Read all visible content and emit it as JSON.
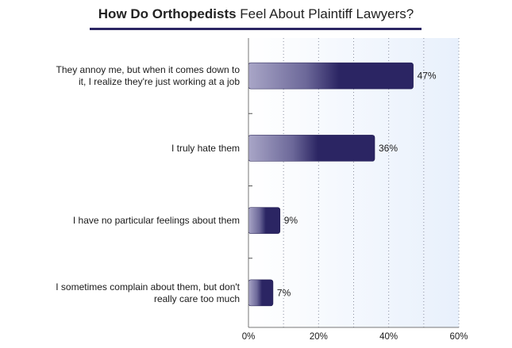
{
  "chart_data": {
    "type": "bar",
    "orientation": "horizontal",
    "title_bold": "How Do Orthopedists",
    "title_rest": " Feel About Plaintiff Lawyers?",
    "categories": [
      [
        "They annoy me, but when it comes down to",
        "it, I realize they're just working at a job"
      ],
      [
        "I truly hate them"
      ],
      [
        "I have no particular feelings about them"
      ],
      [
        "I sometimes complain about them, but don't",
        "really care too much"
      ]
    ],
    "values": [
      47,
      36,
      9,
      7
    ],
    "value_labels": [
      "47%",
      "36%",
      "9%",
      "7%"
    ],
    "xlim": [
      0,
      60
    ],
    "x_ticks": [
      0,
      20,
      40,
      60
    ],
    "x_tick_labels": [
      "0%",
      "20%",
      "40%",
      "60%"
    ],
    "grid": "vertical dotted every 10%",
    "colors": {
      "bar_dark": "#2b2563",
      "bar_light": "#a9a6c7",
      "plot_bg": "#eef4fd"
    }
  }
}
